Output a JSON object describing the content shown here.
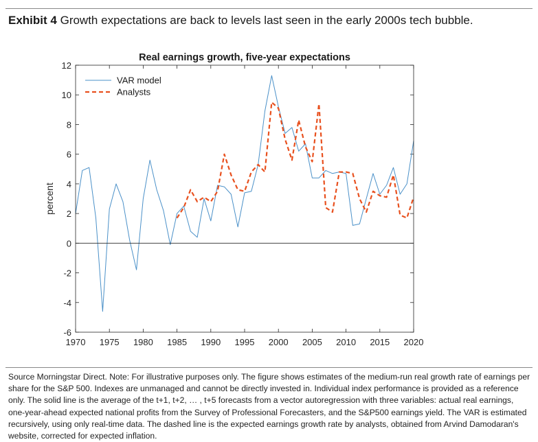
{
  "header": {
    "exhibit_label": "Exhibit 4",
    "exhibit_text": "Growth expectations are back to levels last seen in the early 2000s tech bubble."
  },
  "footer": {
    "note": "Source Morningstar Direct. Note: For illustrative purposes only. The figure shows estimates of the medium-run real growth rate of earnings per share for the S&P 500. Indexes are unmanaged and cannot be directly invested in. Individual index performance is provided as a reference only. The solid line is the average of the t+1, t+2, … , t+5 forecasts from a vector autoregression with three variables: actual real earnings, one-year-ahead expected national profits from the Survey of Professional Forecasters, and the S&P500 earnings yield. The VAR is estimated recursively, using only real-time data. The dashed line is the expected earnings growth rate by analysts, obtained from Arvind Damodaran's website, corrected for expected inflation."
  },
  "chart_data": {
    "type": "line",
    "title": "Real earnings growth, five-year expectations",
    "xlabel": "",
    "ylabel": "percent",
    "xlim": [
      1970,
      2020
    ],
    "ylim": [
      -6,
      12
    ],
    "xticks": [
      1970,
      1975,
      1980,
      1985,
      1990,
      1995,
      2000,
      2005,
      2010,
      2015,
      2020
    ],
    "yticks": [
      -6,
      -4,
      -2,
      0,
      2,
      4,
      6,
      8,
      10,
      12
    ],
    "grid": false,
    "legend_position": "top-left",
    "series": [
      {
        "name": "VAR model",
        "style": "solid",
        "color": "#4a90c8",
        "x": [
          1970,
          1971,
          1972,
          1973,
          1974,
          1975,
          1976,
          1977,
          1978,
          1979,
          1980,
          1981,
          1982,
          1983,
          1984,
          1985,
          1986,
          1987,
          1988,
          1989,
          1990,
          1991,
          1992,
          1993,
          1994,
          1995,
          1996,
          1997,
          1998,
          1999,
          2000,
          2001,
          2002,
          2003,
          2004,
          2005,
          2006,
          2007,
          2008,
          2009,
          2010,
          2011,
          2012,
          2013,
          2014,
          2015,
          2016,
          2017,
          2018,
          2019,
          2020
        ],
        "values": [
          2.0,
          4.9,
          5.1,
          1.7,
          -4.6,
          2.3,
          4.0,
          2.8,
          0.2,
          -1.8,
          3.0,
          5.6,
          3.6,
          2.2,
          -0.1,
          2.0,
          2.5,
          0.8,
          0.4,
          3.0,
          1.5,
          3.9,
          3.8,
          3.3,
          1.1,
          3.4,
          3.5,
          5.3,
          8.9,
          11.3,
          9.2,
          7.4,
          7.8,
          6.2,
          6.7,
          4.4,
          4.4,
          4.9,
          4.7,
          4.8,
          4.7,
          1.2,
          1.3,
          3.0,
          4.7,
          3.3,
          3.9,
          5.1,
          3.3,
          4.0,
          6.9
        ]
      },
      {
        "name": "Analysts",
        "style": "dashed",
        "color": "#e8501e",
        "x": [
          1985,
          1986,
          1987,
          1988,
          1989,
          1990,
          1991,
          1992,
          1993,
          1994,
          1995,
          1996,
          1997,
          1998,
          1999,
          2000,
          2001,
          2002,
          2003,
          2004,
          2005,
          2006,
          2007,
          2008,
          2009,
          2010,
          2011,
          2012,
          2013,
          2014,
          2015,
          2016,
          2017,
          2018,
          2019,
          2020
        ],
        "values": [
          1.7,
          2.4,
          3.6,
          2.8,
          3.1,
          2.8,
          3.5,
          6.0,
          4.6,
          3.6,
          3.5,
          4.8,
          5.3,
          4.8,
          9.5,
          9.1,
          7.0,
          5.6,
          8.3,
          6.5,
          5.5,
          9.4,
          2.4,
          2.1,
          4.8,
          4.8,
          4.7,
          3.0,
          2.1,
          3.5,
          3.2,
          3.1,
          4.6,
          1.9,
          1.7,
          3.1
        ]
      }
    ]
  }
}
